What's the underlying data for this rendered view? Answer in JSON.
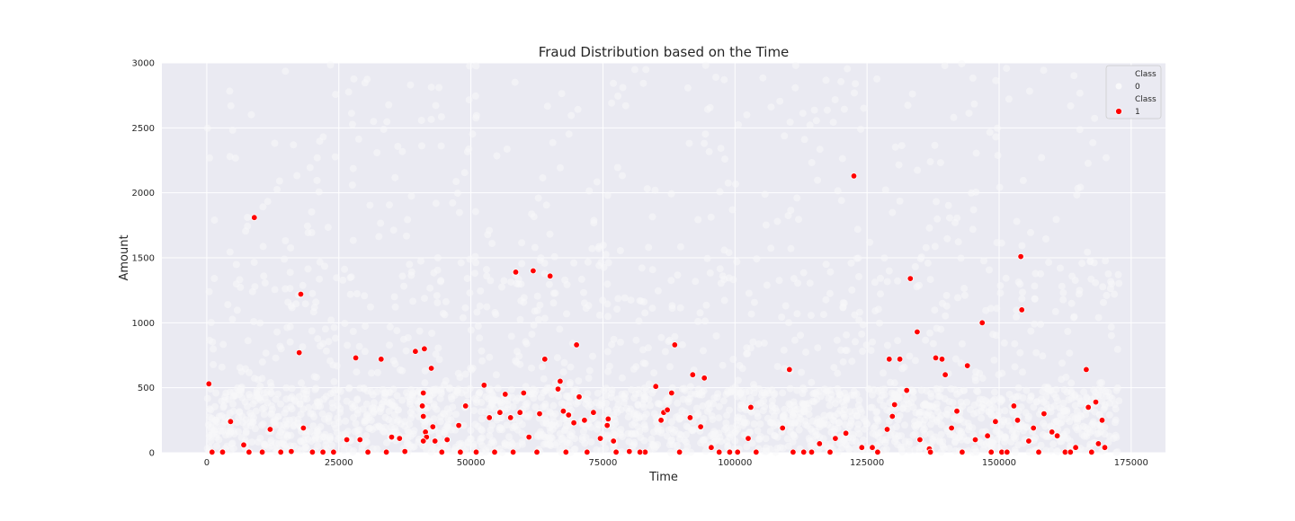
{
  "chart_data": {
    "type": "scatter",
    "title": "Fraud Distribution based on the Time",
    "xlabel": "Time",
    "ylabel": "Amount",
    "xlim": [
      -8500,
      181500
    ],
    "ylim": [
      0,
      3000
    ],
    "xticks": [
      0,
      25000,
      50000,
      75000,
      100000,
      125000,
      150000,
      175000
    ],
    "yticks": [
      0,
      500,
      1000,
      1500,
      2000,
      2500,
      3000
    ],
    "grid": true,
    "legend_position": "top-right",
    "background_color": "#eaeaf2",
    "legend": [
      {
        "title": "Class",
        "label": "0",
        "color": "#f8f8fa"
      },
      {
        "title": "Class",
        "label": "1",
        "color": "#ff0000"
      }
    ],
    "series": [
      {
        "label": "0",
        "color": "#f8f8fa",
        "note_density": "dense band 0-500, sparse up to 3000, x range 0-172800",
        "x_range": [
          0,
          172800
        ]
      },
      {
        "label": "1",
        "color": "#ff0000",
        "points": [
          [
            400,
            530
          ],
          [
            4500,
            240
          ],
          [
            7000,
            60
          ],
          [
            9000,
            1810
          ],
          [
            12000,
            180
          ],
          [
            16000,
            10
          ],
          [
            17500,
            770
          ],
          [
            17800,
            1220
          ],
          [
            18300,
            190
          ],
          [
            20000,
            5
          ],
          [
            24000,
            5
          ],
          [
            26500,
            100
          ],
          [
            28200,
            730
          ],
          [
            29000,
            100
          ],
          [
            33000,
            720
          ],
          [
            35000,
            120
          ],
          [
            36500,
            110
          ],
          [
            37500,
            10
          ],
          [
            39500,
            780
          ],
          [
            41200,
            800
          ],
          [
            41000,
            460
          ],
          [
            40800,
            360
          ],
          [
            41000,
            280
          ],
          [
            41400,
            160
          ],
          [
            41600,
            120
          ],
          [
            41000,
            90
          ],
          [
            42500,
            650
          ],
          [
            42800,
            200
          ],
          [
            43200,
            90
          ],
          [
            45500,
            100
          ],
          [
            47700,
            210
          ],
          [
            49000,
            360
          ],
          [
            52500,
            520
          ],
          [
            53500,
            270
          ],
          [
            55500,
            310
          ],
          [
            56500,
            450
          ],
          [
            57500,
            270
          ],
          [
            58500,
            1390
          ],
          [
            59300,
            310
          ],
          [
            60000,
            460
          ],
          [
            61000,
            120
          ],
          [
            61800,
            1400
          ],
          [
            63000,
            300
          ],
          [
            64000,
            720
          ],
          [
            65000,
            1360
          ],
          [
            66500,
            490
          ],
          [
            66900,
            550
          ],
          [
            67500,
            320
          ],
          [
            68500,
            290
          ],
          [
            69500,
            230
          ],
          [
            70000,
            830
          ],
          [
            70500,
            430
          ],
          [
            71500,
            250
          ],
          [
            73200,
            310
          ],
          [
            74500,
            110
          ],
          [
            75800,
            210
          ],
          [
            76000,
            260
          ],
          [
            77000,
            90
          ],
          [
            80000,
            10
          ],
          [
            83000,
            5
          ],
          [
            85000,
            510
          ],
          [
            86000,
            250
          ],
          [
            86500,
            310
          ],
          [
            87200,
            330
          ],
          [
            88000,
            460
          ],
          [
            88600,
            830
          ],
          [
            91500,
            270
          ],
          [
            92000,
            600
          ],
          [
            93500,
            200
          ],
          [
            94200,
            575
          ],
          [
            95500,
            40
          ],
          [
            100500,
            5
          ],
          [
            102500,
            110
          ],
          [
            103000,
            350
          ],
          [
            109000,
            190
          ],
          [
            110300,
            640
          ],
          [
            111000,
            5
          ],
          [
            113000,
            5
          ],
          [
            116000,
            70
          ],
          [
            119000,
            110
          ],
          [
            121000,
            150
          ],
          [
            122500,
            2130
          ],
          [
            124000,
            40
          ],
          [
            126000,
            40
          ],
          [
            128800,
            180
          ],
          [
            129200,
            720
          ],
          [
            129800,
            280
          ],
          [
            130200,
            370
          ],
          [
            131200,
            720
          ],
          [
            132500,
            480
          ],
          [
            133200,
            1340
          ],
          [
            134500,
            930
          ],
          [
            135000,
            100
          ],
          [
            136800,
            30
          ],
          [
            138000,
            730
          ],
          [
            139200,
            720
          ],
          [
            139800,
            600
          ],
          [
            141000,
            190
          ],
          [
            142000,
            320
          ],
          [
            144000,
            670
          ],
          [
            145500,
            100
          ],
          [
            146800,
            1000
          ],
          [
            147800,
            130
          ],
          [
            149300,
            240
          ],
          [
            150500,
            5
          ],
          [
            152800,
            360
          ],
          [
            153500,
            250
          ],
          [
            154100,
            1510
          ],
          [
            154300,
            1100
          ],
          [
            155600,
            90
          ],
          [
            156500,
            190
          ],
          [
            158500,
            300
          ],
          [
            160000,
            160
          ],
          [
            161000,
            130
          ],
          [
            162500,
            5
          ],
          [
            164500,
            40
          ],
          [
            166500,
            640
          ],
          [
            166900,
            350
          ],
          [
            168300,
            390
          ],
          [
            168800,
            70
          ],
          [
            169500,
            250
          ],
          [
            170000,
            40
          ],
          [
            1000,
            5
          ],
          [
            3000,
            5
          ],
          [
            8000,
            5
          ],
          [
            10500,
            5
          ],
          [
            14000,
            5
          ],
          [
            22000,
            5
          ],
          [
            30500,
            5
          ],
          [
            34000,
            5
          ],
          [
            44500,
            5
          ],
          [
            48000,
            5
          ],
          [
            51000,
            5
          ],
          [
            54500,
            5
          ],
          [
            58000,
            5
          ],
          [
            62500,
            5
          ],
          [
            68000,
            5
          ],
          [
            72000,
            5
          ],
          [
            77500,
            5
          ],
          [
            82000,
            5
          ],
          [
            89500,
            5
          ],
          [
            97000,
            5
          ],
          [
            99000,
            5
          ],
          [
            104000,
            5
          ],
          [
            114500,
            5
          ],
          [
            118000,
            5
          ],
          [
            127000,
            5
          ],
          [
            137000,
            5
          ],
          [
            143000,
            5
          ],
          [
            148500,
            5
          ],
          [
            151500,
            5
          ],
          [
            157500,
            5
          ],
          [
            163500,
            5
          ],
          [
            167500,
            5
          ]
        ]
      }
    ]
  }
}
